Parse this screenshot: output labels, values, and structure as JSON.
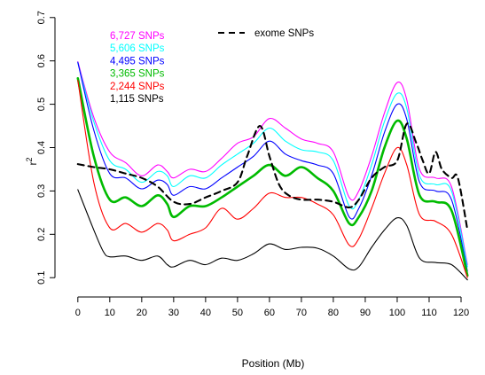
{
  "chart_data": {
    "type": "line",
    "title": "",
    "xlabel": "Position (Mb)",
    "ylabel": "r",
    "ylabel_superscript": "2",
    "xlim": [
      -3,
      125
    ],
    "ylim": [
      0.08,
      0.72
    ],
    "x_ticks": [
      0,
      10,
      20,
      30,
      40,
      50,
      60,
      70,
      80,
      90,
      100,
      110,
      120
    ],
    "y_ticks": [
      0.1,
      0.2,
      0.3,
      0.4,
      0.5,
      0.6,
      0.7
    ],
    "x_tick_labels": [
      "0",
      "10",
      "20",
      "30",
      "40",
      "50",
      "60",
      "70",
      "80",
      "90",
      "100",
      "110",
      "120"
    ],
    "y_tick_labels": [
      "0.1",
      "0.2",
      "0.3",
      "0.4",
      "0.5",
      "0.6",
      "0.7"
    ],
    "grid": false,
    "legend_placement": "top-left",
    "series": [
      {
        "name": "6,727 SNPs",
        "color": "#ff00ff",
        "width": 1.1,
        "dash": false,
        "points": [
          [
            0,
            0.598
          ],
          [
            5,
            0.47
          ],
          [
            10,
            0.39
          ],
          [
            15,
            0.365
          ],
          [
            20,
            0.335
          ],
          [
            25,
            0.36
          ],
          [
            28,
            0.345
          ],
          [
            30,
            0.33
          ],
          [
            35,
            0.35
          ],
          [
            40,
            0.345
          ],
          [
            45,
            0.375
          ],
          [
            50,
            0.41
          ],
          [
            55,
            0.425
          ],
          [
            60,
            0.467
          ],
          [
            65,
            0.445
          ],
          [
            70,
            0.42
          ],
          [
            75,
            0.41
          ],
          [
            80,
            0.39
          ],
          [
            85,
            0.285
          ],
          [
            88,
            0.3
          ],
          [
            92,
            0.38
          ],
          [
            96,
            0.48
          ],
          [
            100,
            0.55
          ],
          [
            103,
            0.51
          ],
          [
            107,
            0.35
          ],
          [
            112,
            0.33
          ],
          [
            117,
            0.31
          ],
          [
            122,
            0.13
          ]
        ]
      },
      {
        "name": "5,606 SNPs",
        "color": "#00ffff",
        "width": 1.1,
        "dash": false,
        "points": [
          [
            0,
            0.595
          ],
          [
            5,
            0.46
          ],
          [
            10,
            0.37
          ],
          [
            15,
            0.35
          ],
          [
            20,
            0.32
          ],
          [
            25,
            0.345
          ],
          [
            28,
            0.335
          ],
          [
            30,
            0.31
          ],
          [
            35,
            0.335
          ],
          [
            40,
            0.33
          ],
          [
            45,
            0.36
          ],
          [
            50,
            0.385
          ],
          [
            55,
            0.41
          ],
          [
            60,
            0.445
          ],
          [
            65,
            0.415
          ],
          [
            70,
            0.395
          ],
          [
            75,
            0.39
          ],
          [
            80,
            0.37
          ],
          [
            85,
            0.265
          ],
          [
            88,
            0.28
          ],
          [
            92,
            0.36
          ],
          [
            96,
            0.46
          ],
          [
            100,
            0.525
          ],
          [
            103,
            0.49
          ],
          [
            107,
            0.335
          ],
          [
            112,
            0.315
          ],
          [
            117,
            0.3
          ],
          [
            122,
            0.125
          ]
        ]
      },
      {
        "name": "4,495 SNPs",
        "color": "#0000ff",
        "width": 1.1,
        "dash": false,
        "points": [
          [
            0,
            0.597
          ],
          [
            5,
            0.44
          ],
          [
            10,
            0.34
          ],
          [
            15,
            0.33
          ],
          [
            20,
            0.305
          ],
          [
            25,
            0.325
          ],
          [
            28,
            0.315
          ],
          [
            30,
            0.29
          ],
          [
            35,
            0.31
          ],
          [
            40,
            0.305
          ],
          [
            45,
            0.33
          ],
          [
            50,
            0.355
          ],
          [
            55,
            0.38
          ],
          [
            60,
            0.415
          ],
          [
            65,
            0.385
          ],
          [
            70,
            0.37
          ],
          [
            75,
            0.36
          ],
          [
            80,
            0.34
          ],
          [
            85,
            0.24
          ],
          [
            88,
            0.26
          ],
          [
            92,
            0.335
          ],
          [
            96,
            0.435
          ],
          [
            100,
            0.5
          ],
          [
            103,
            0.465
          ],
          [
            107,
            0.32
          ],
          [
            112,
            0.3
          ],
          [
            117,
            0.28
          ],
          [
            122,
            0.115
          ]
        ]
      },
      {
        "name": "3,365 SNPs",
        "color": "#00bb00",
        "width": 2.6,
        "dash": false,
        "points": [
          [
            0,
            0.56
          ],
          [
            5,
            0.38
          ],
          [
            10,
            0.28
          ],
          [
            15,
            0.285
          ],
          [
            20,
            0.265
          ],
          [
            25,
            0.29
          ],
          [
            28,
            0.27
          ],
          [
            30,
            0.24
          ],
          [
            35,
            0.265
          ],
          [
            40,
            0.265
          ],
          [
            45,
            0.285
          ],
          [
            50,
            0.31
          ],
          [
            55,
            0.335
          ],
          [
            60,
            0.36
          ],
          [
            65,
            0.335
          ],
          [
            70,
            0.355
          ],
          [
            75,
            0.33
          ],
          [
            80,
            0.3
          ],
          [
            85,
            0.225
          ],
          [
            88,
            0.24
          ],
          [
            92,
            0.3
          ],
          [
            96,
            0.4
          ],
          [
            100,
            0.462
          ],
          [
            103,
            0.42
          ],
          [
            107,
            0.29
          ],
          [
            112,
            0.275
          ],
          [
            117,
            0.255
          ],
          [
            122,
            0.105
          ]
        ]
      },
      {
        "name": "2,244 SNPs",
        "color": "#ff0000",
        "width": 1.1,
        "dash": false,
        "points": [
          [
            0,
            0.555
          ],
          [
            5,
            0.32
          ],
          [
            10,
            0.215
          ],
          [
            15,
            0.225
          ],
          [
            20,
            0.205
          ],
          [
            25,
            0.225
          ],
          [
            28,
            0.21
          ],
          [
            30,
            0.185
          ],
          [
            35,
            0.2
          ],
          [
            40,
            0.215
          ],
          [
            45,
            0.26
          ],
          [
            50,
            0.235
          ],
          [
            55,
            0.26
          ],
          [
            60,
            0.295
          ],
          [
            65,
            0.285
          ],
          [
            70,
            0.285
          ],
          [
            75,
            0.27
          ],
          [
            80,
            0.245
          ],
          [
            85,
            0.175
          ],
          [
            88,
            0.19
          ],
          [
            92,
            0.26
          ],
          [
            96,
            0.34
          ],
          [
            100,
            0.4
          ],
          [
            103,
            0.36
          ],
          [
            107,
            0.245
          ],
          [
            112,
            0.23
          ],
          [
            117,
            0.2
          ],
          [
            122,
            0.1
          ]
        ]
      },
      {
        "name": "1,115 SNPs",
        "color": "#000000",
        "width": 1.1,
        "dash": false,
        "points": [
          [
            0,
            0.303
          ],
          [
            5,
            0.21
          ],
          [
            8,
            0.16
          ],
          [
            10,
            0.148
          ],
          [
            15,
            0.15
          ],
          [
            20,
            0.14
          ],
          [
            25,
            0.15
          ],
          [
            28,
            0.13
          ],
          [
            30,
            0.125
          ],
          [
            35,
            0.14
          ],
          [
            40,
            0.13
          ],
          [
            45,
            0.145
          ],
          [
            50,
            0.14
          ],
          [
            55,
            0.155
          ],
          [
            60,
            0.178
          ],
          [
            65,
            0.165
          ],
          [
            70,
            0.17
          ],
          [
            75,
            0.168
          ],
          [
            80,
            0.15
          ],
          [
            85,
            0.12
          ],
          [
            88,
            0.125
          ],
          [
            92,
            0.17
          ],
          [
            96,
            0.21
          ],
          [
            100,
            0.238
          ],
          [
            103,
            0.22
          ],
          [
            107,
            0.145
          ],
          [
            112,
            0.135
          ],
          [
            117,
            0.13
          ],
          [
            122,
            0.095
          ]
        ]
      },
      {
        "name": "exome SNPs",
        "color": "#000000",
        "width": 2.1,
        "dash": true,
        "points": [
          [
            0,
            0.362
          ],
          [
            5,
            0.355
          ],
          [
            10,
            0.35
          ],
          [
            15,
            0.34
          ],
          [
            20,
            0.33
          ],
          [
            25,
            0.31
          ],
          [
            30,
            0.275
          ],
          [
            35,
            0.27
          ],
          [
            40,
            0.285
          ],
          [
            45,
            0.3
          ],
          [
            50,
            0.32
          ],
          [
            53,
            0.38
          ],
          [
            57,
            0.45
          ],
          [
            60,
            0.38
          ],
          [
            63,
            0.315
          ],
          [
            66,
            0.29
          ],
          [
            70,
            0.28
          ],
          [
            75,
            0.28
          ],
          [
            80,
            0.275
          ],
          [
            85,
            0.262
          ],
          [
            88,
            0.28
          ],
          [
            92,
            0.33
          ],
          [
            96,
            0.355
          ],
          [
            100,
            0.37
          ],
          [
            103,
            0.455
          ],
          [
            106,
            0.41
          ],
          [
            108,
            0.37
          ],
          [
            110,
            0.34
          ],
          [
            112,
            0.39
          ],
          [
            114,
            0.35
          ],
          [
            117,
            0.33
          ],
          [
            119,
            0.33
          ],
          [
            122,
            0.21
          ]
        ]
      }
    ]
  }
}
